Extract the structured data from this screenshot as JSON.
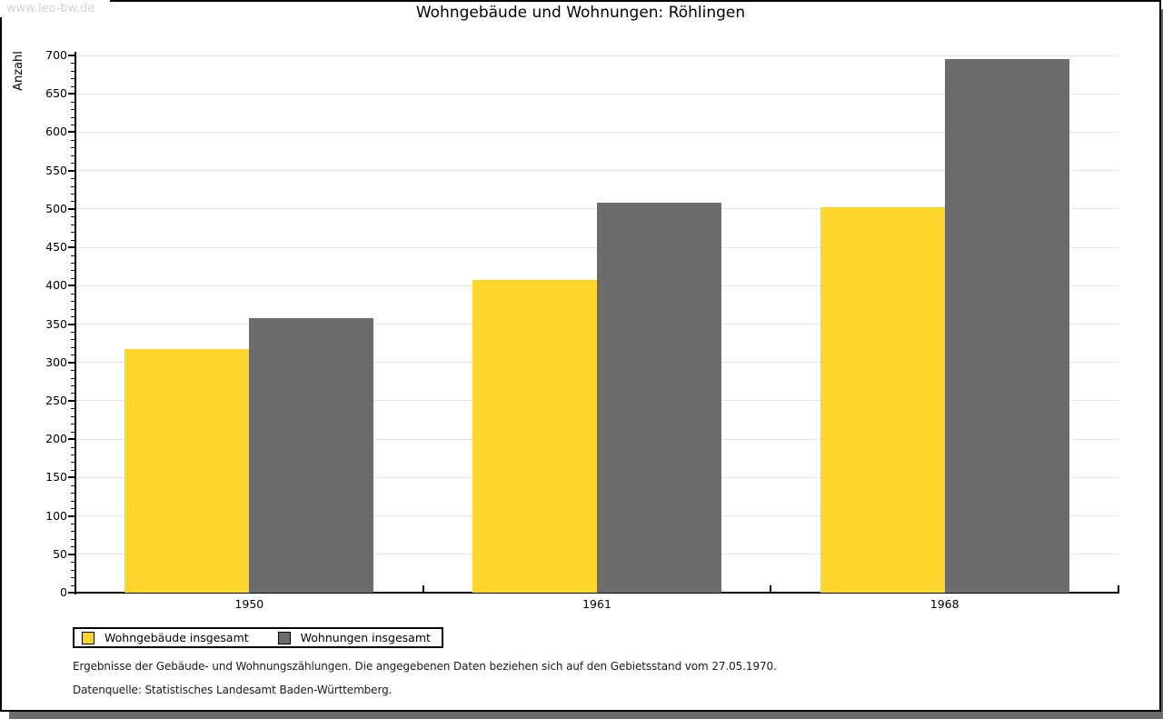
{
  "watermark": "www.leo-bw.de",
  "title": "Wohngebäude und Wohnungen: Röhlingen",
  "chart_data": {
    "type": "bar",
    "title": "Wohngebäude und Wohnungen: Röhlingen",
    "xlabel": "",
    "ylabel": "Anzahl",
    "categories": [
      "1950",
      "1961",
      "1968"
    ],
    "series": [
      {
        "name": "Wohngebäude insgesamt",
        "color": "#fdd52d",
        "values": [
          318,
          408,
          502
        ]
      },
      {
        "name": "Wohnungen insgesamt",
        "color": "#6c6c6c",
        "values": [
          358,
          508,
          695
        ]
      }
    ],
    "ylim": [
      0,
      700
    ],
    "ytick_step": 50,
    "yminor_step": 10,
    "grid": "horizontal",
    "legend_position": "bottom-left"
  },
  "footnotes": {
    "line1": "Ergebnisse der Gebäude- und Wohnungszählungen. Die angegebenen Daten beziehen sich auf den Gebietsstand vom 27.05.1970.",
    "line2": "Datenquelle: Statistisches Landesamt Baden-Württemberg."
  },
  "colors": {
    "grid": "#e5e5e5",
    "axis": "#000000",
    "watermark_text": "#d4d4d4",
    "shadow": "#6b6b6b",
    "background": "#ffffff"
  }
}
